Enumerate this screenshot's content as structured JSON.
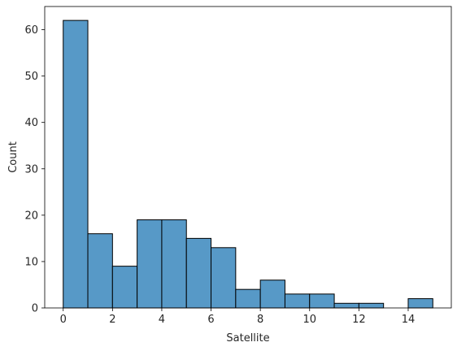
{
  "chart_data": {
    "type": "bar",
    "variant": "histogram",
    "bin_edges": [
      0,
      1,
      2,
      3,
      4,
      5,
      6,
      7,
      8,
      9,
      10,
      11,
      12,
      13,
      14,
      15
    ],
    "values": [
      62,
      16,
      9,
      19,
      19,
      15,
      13,
      4,
      6,
      3,
      3,
      1,
      1,
      0,
      2
    ],
    "xlabel": "Satellite",
    "ylabel": "Count",
    "xlim": [
      -0.75,
      15.75
    ],
    "ylim": [
      0,
      65
    ],
    "xticks": [
      0,
      2,
      4,
      6,
      8,
      10,
      12,
      14
    ],
    "yticks": [
      0,
      10,
      20,
      30,
      40,
      50,
      60
    ],
    "grid": false,
    "bar_color": "#5799c7",
    "edge_color": "#000000"
  }
}
